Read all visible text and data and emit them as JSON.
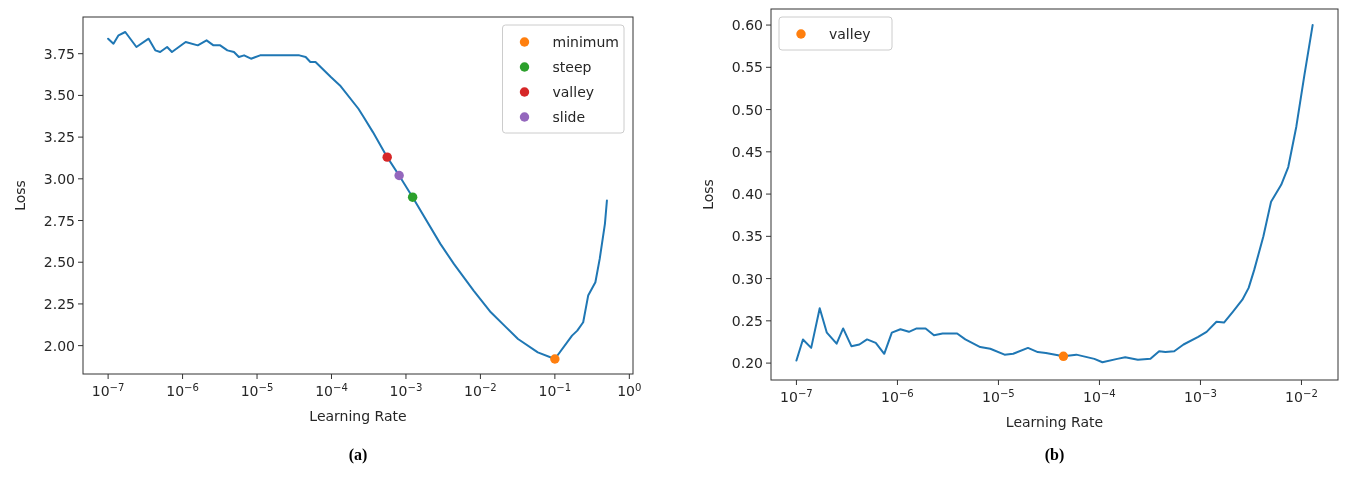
{
  "chart_data": [
    {
      "type": "line",
      "xlabel": "Learning Rate",
      "ylabel": "Loss",
      "log": "x",
      "legend": "top right",
      "annotations": [
        "(a)"
      ],
      "xlim": [
        4.6e-08,
        1.12
      ],
      "ylim": [
        1.83,
        3.97
      ],
      "xticks": [
        {
          "value": 1e-07,
          "label": "10$^{−7}$"
        },
        {
          "value": 1e-06,
          "label": "10$^{−6}$"
        },
        {
          "value": 1e-05,
          "label": "10$^{−5}$"
        },
        {
          "value": 0.0001,
          "label": "10$^{−4}$"
        },
        {
          "value": 0.001,
          "label": "10$^{−3}$"
        },
        {
          "value": 0.01,
          "label": "10$^{−2}$"
        },
        {
          "value": 0.1,
          "label": "10$^{−1}$"
        },
        {
          "value": 1,
          "label": "10$^{0}$"
        }
      ],
      "yticks": [
        {
          "value": 2,
          "label": "2.00"
        },
        2.25,
        {
          "value": 2.5,
          "label": "2.50"
        },
        2.75,
        {
          "value": 3,
          "label": "3.00"
        },
        3.25,
        {
          "value": 3.5,
          "label": "3.50"
        },
        3.75
      ],
      "series": [
        {
          "color": "#1f77b4",
          "x": [
            1e-07,
            1.18e-07,
            1.38e-07,
            1.7e-07,
            2.4e-07,
            3.5e-07,
            4.3e-07,
            5e-07,
            6.2e-07,
            7.2e-07,
            1.1e-06,
            1.6e-06,
            2.1e-06,
            2.6e-06,
            3.2e-06,
            4e-06,
            4.9e-06,
            5.7e-06,
            6.7e-06,
            8.3e-06,
            1.1e-05,
            1.9e-05,
            3.2e-05,
            3.7e-05,
            4.5e-05,
            5.2e-05,
            6.1e-05,
            9.8e-05,
            0.00013,
            0.00023,
            0.00027,
            0.00036,
            0.00056,
            0.00081,
            0.00123,
            0.0029,
            0.0044,
            0.0081,
            0.0138,
            0.021,
            0.032,
            0.059,
            0.1,
            0.17,
            0.2,
            0.24,
            0.28,
            0.35,
            0.4,
            0.47,
            0.5
          ],
          "values": [
            3.84,
            3.81,
            3.86,
            3.88,
            3.79,
            3.84,
            3.77,
            3.76,
            3.79,
            3.76,
            3.82,
            3.8,
            3.83,
            3.8,
            3.8,
            3.77,
            3.76,
            3.73,
            3.74,
            3.72,
            3.74,
            3.74,
            3.74,
            3.74,
            3.73,
            3.7,
            3.7,
            3.61,
            3.56,
            3.42,
            3.37,
            3.28,
            3.13,
            3.02,
            2.89,
            2.61,
            2.49,
            2.33,
            2.2,
            2.12,
            2.04,
            1.96,
            1.92,
            2.06,
            2.09,
            2.14,
            2.3,
            2.38,
            2.52,
            2.73,
            2.87
          ]
        },
        {
          "type": "scatter",
          "marker": "circle",
          "name": "minimum",
          "color": "#ff7f0e",
          "x": [
            0.1
          ],
          "values": [
            1.92
          ]
        },
        {
          "type": "scatter",
          "marker": "circle",
          "name": "steep",
          "color": "#2ca02c",
          "x": [
            0.00123
          ],
          "values": [
            2.89
          ]
        },
        {
          "type": "scatter",
          "marker": "circle",
          "name": "valley",
          "color": "#d62728",
          "x": [
            0.00056
          ],
          "values": [
            3.13
          ]
        },
        {
          "type": "scatter",
          "marker": "circle",
          "name": "slide",
          "color": "#9467bd",
          "x": [
            0.00081
          ],
          "values": [
            3.02
          ]
        }
      ]
    },
    {
      "type": "line",
      "xlabel": "Learning Rate",
      "ylabel": "Loss",
      "log": "x",
      "legend": "top left",
      "annotations": [
        "(b)"
      ],
      "xlim": [
        5.6e-08,
        0.023
      ],
      "ylim": [
        0.18,
        0.619
      ],
      "xticks": [
        {
          "value": 1e-07,
          "label": "10$^{−7}$"
        },
        {
          "value": 1e-06,
          "label": "10$^{−6}$"
        },
        {
          "value": 1e-05,
          "label": "10$^{−5}$"
        },
        {
          "value": 0.0001,
          "label": "10$^{−4}$"
        },
        {
          "value": 0.001,
          "label": "10$^{−3}$"
        },
        {
          "value": 0.01,
          "label": "10$^{−2}$"
        }
      ],
      "yticks": [
        {
          "value": 0.2,
          "label": "0.20"
        },
        0.25,
        {
          "value": 0.3,
          "label": "0.30"
        },
        0.35,
        {
          "value": 0.4,
          "label": "0.40"
        },
        0.45,
        {
          "value": 0.5,
          "label": "0.50"
        },
        0.55,
        {
          "value": 0.6,
          "label": "0.60"
        }
      ],
      "series": [
        {
          "color": "#1f77b4",
          "x": [
            1e-07,
            1.16e-07,
            1.4e-07,
            1.7e-07,
            2e-07,
            2.5e-07,
            2.9e-07,
            3.5e-07,
            4.2e-07,
            5e-07,
            6.1e-07,
            7.4e-07,
            8.8e-07,
            1.07e-06,
            1.3e-06,
            1.55e-06,
            1.9e-06,
            2.3e-06,
            2.8e-06,
            3.9e-06,
            4.7e-06,
            6.6e-06,
            8.3e-06,
            1.15e-05,
            1.4e-05,
            1.96e-05,
            2.45e-05,
            2.95e-05,
            4.4e-05,
            5.9e-05,
            8.9e-05,
            0.000107,
            0.00015,
            0.00018,
            0.00024,
            0.00032,
            0.00039,
            0.00045,
            0.00055,
            0.00068,
            0.00095,
            0.00115,
            0.00144,
            0.00171,
            0.0021,
            0.0026,
            0.003,
            0.0034,
            0.0042,
            0.005,
            0.0063,
            0.0074,
            0.0089,
            0.0107,
            0.0129
          ],
          "values": [
            0.203,
            0.228,
            0.218,
            0.265,
            0.236,
            0.223,
            0.241,
            0.22,
            0.222,
            0.228,
            0.224,
            0.211,
            0.236,
            0.24,
            0.237,
            0.241,
            0.241,
            0.233,
            0.235,
            0.235,
            0.228,
            0.219,
            0.217,
            0.21,
            0.211,
            0.218,
            0.213,
            0.212,
            0.208,
            0.21,
            0.205,
            0.201,
            0.205,
            0.207,
            0.204,
            0.205,
            0.214,
            0.213,
            0.214,
            0.222,
            0.231,
            0.237,
            0.249,
            0.248,
            0.261,
            0.275,
            0.289,
            0.31,
            0.35,
            0.391,
            0.411,
            0.432,
            0.48,
            0.541,
            0.6
          ]
        },
        {
          "type": "scatter",
          "marker": "circle",
          "name": "valley",
          "color": "#ff7f0e",
          "x": [
            4.4e-05
          ],
          "values": [
            0.208
          ]
        }
      ]
    }
  ]
}
